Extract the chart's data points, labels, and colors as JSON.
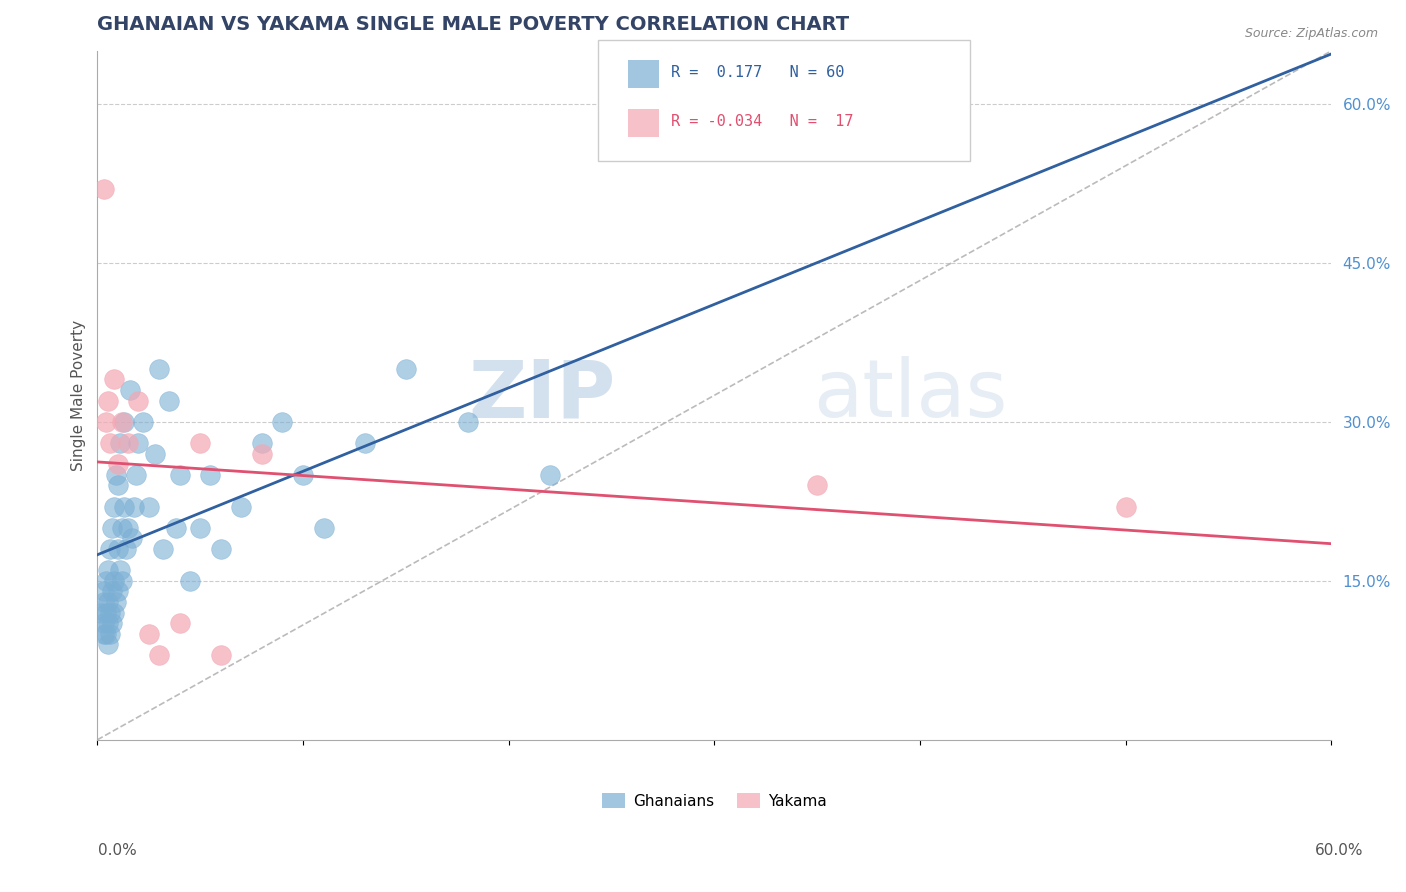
{
  "title": "GHANAIAN VS YAKAMA SINGLE MALE POVERTY CORRELATION CHART",
  "source": "Source: ZipAtlas.com",
  "ylabel": "Single Male Poverty",
  "x_range": [
    0.0,
    0.6
  ],
  "y_range": [
    0.0,
    0.65
  ],
  "legend_r_blue": "0.177",
  "legend_n_blue": "60",
  "legend_r_pink": "-0.034",
  "legend_n_pink": "17",
  "legend_label_blue": "Ghanaians",
  "legend_label_pink": "Yakama",
  "blue_color": "#7bafd4",
  "pink_color": "#f4a7b3",
  "trend_blue_color": "#3060a0",
  "trend_pink_color": "#e05070",
  "watermark_zip": "ZIP",
  "watermark_atlas": "atlas",
  "background_color": "#ffffff",
  "blue_dots_x": [
    0.002,
    0.003,
    0.003,
    0.003,
    0.003,
    0.004,
    0.004,
    0.004,
    0.005,
    0.005,
    0.005,
    0.005,
    0.006,
    0.006,
    0.006,
    0.007,
    0.007,
    0.007,
    0.008,
    0.008,
    0.008,
    0.009,
    0.009,
    0.01,
    0.01,
    0.01,
    0.011,
    0.011,
    0.012,
    0.012,
    0.013,
    0.013,
    0.014,
    0.015,
    0.016,
    0.017,
    0.018,
    0.019,
    0.02,
    0.022,
    0.025,
    0.028,
    0.03,
    0.032,
    0.035,
    0.038,
    0.04,
    0.045,
    0.05,
    0.055,
    0.06,
    0.07,
    0.08,
    0.09,
    0.1,
    0.11,
    0.13,
    0.15,
    0.18,
    0.22
  ],
  "blue_dots_y": [
    0.12,
    0.1,
    0.11,
    0.13,
    0.14,
    0.1,
    0.12,
    0.15,
    0.09,
    0.11,
    0.13,
    0.16,
    0.1,
    0.12,
    0.18,
    0.11,
    0.14,
    0.2,
    0.12,
    0.15,
    0.22,
    0.13,
    0.25,
    0.14,
    0.18,
    0.24,
    0.16,
    0.28,
    0.15,
    0.2,
    0.22,
    0.3,
    0.18,
    0.2,
    0.33,
    0.19,
    0.22,
    0.25,
    0.28,
    0.3,
    0.22,
    0.27,
    0.35,
    0.18,
    0.32,
    0.2,
    0.25,
    0.15,
    0.2,
    0.25,
    0.18,
    0.22,
    0.28,
    0.3,
    0.25,
    0.2,
    0.28,
    0.35,
    0.3,
    0.25
  ],
  "pink_dots_x": [
    0.003,
    0.004,
    0.005,
    0.006,
    0.008,
    0.01,
    0.012,
    0.015,
    0.02,
    0.025,
    0.03,
    0.04,
    0.05,
    0.06,
    0.08,
    0.35,
    0.5
  ],
  "pink_dots_y": [
    0.52,
    0.3,
    0.32,
    0.28,
    0.34,
    0.26,
    0.3,
    0.28,
    0.32,
    0.1,
    0.08,
    0.11,
    0.28,
    0.08,
    0.27,
    0.24,
    0.22
  ]
}
